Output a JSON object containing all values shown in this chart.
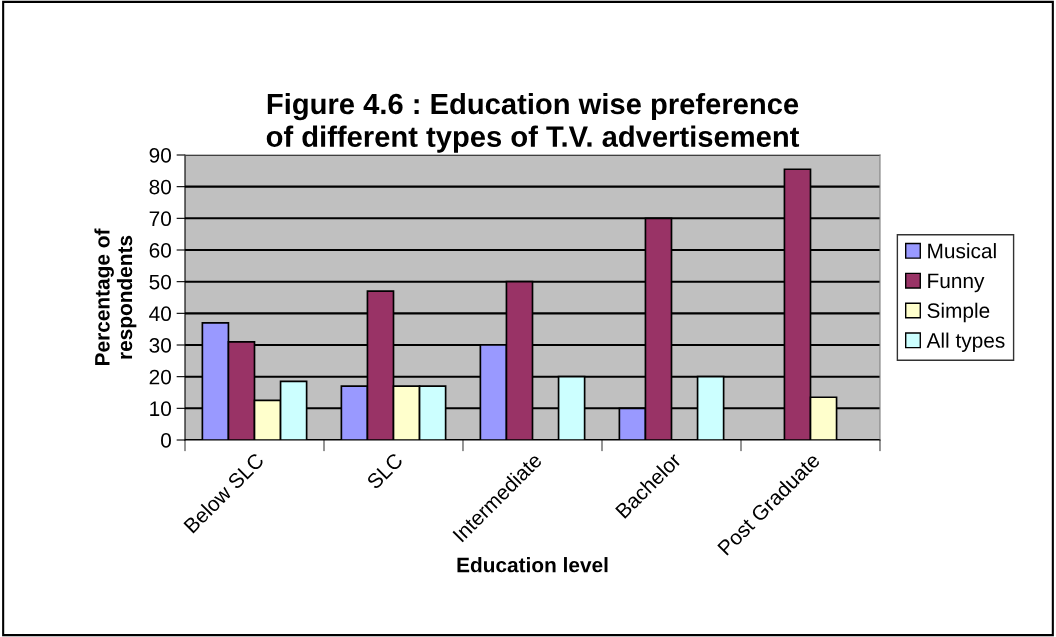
{
  "chart_data": {
    "type": "bar",
    "title": "Figure 4.6 : Education wise preference of different types of T.V. advertisement",
    "xlabel": "Education level",
    "ylabel": "Percentage of respondents",
    "categories": [
      "Below SLC",
      "SLC",
      "Intermediate",
      "Bachelor",
      "Post Graduate"
    ],
    "series": [
      {
        "name": "Musical",
        "color": "#9999ff",
        "values": [
          37,
          17,
          30,
          10,
          null
        ]
      },
      {
        "name": "Funny",
        "color": "#993366",
        "values": [
          31,
          47,
          50,
          70,
          85.5
        ]
      },
      {
        "name": "Simple",
        "color": "#ffffcc",
        "values": [
          12.5,
          17,
          null,
          null,
          13.5
        ]
      },
      {
        "name": "All types",
        "color": "#ccffff",
        "values": [
          18.5,
          17,
          20,
          20,
          null
        ]
      }
    ],
    "ylim": [
      0,
      90
    ],
    "yticks": [
      0,
      10,
      20,
      30,
      40,
      50,
      60,
      70,
      80,
      90
    ],
    "grid": "y",
    "legend": "right"
  }
}
